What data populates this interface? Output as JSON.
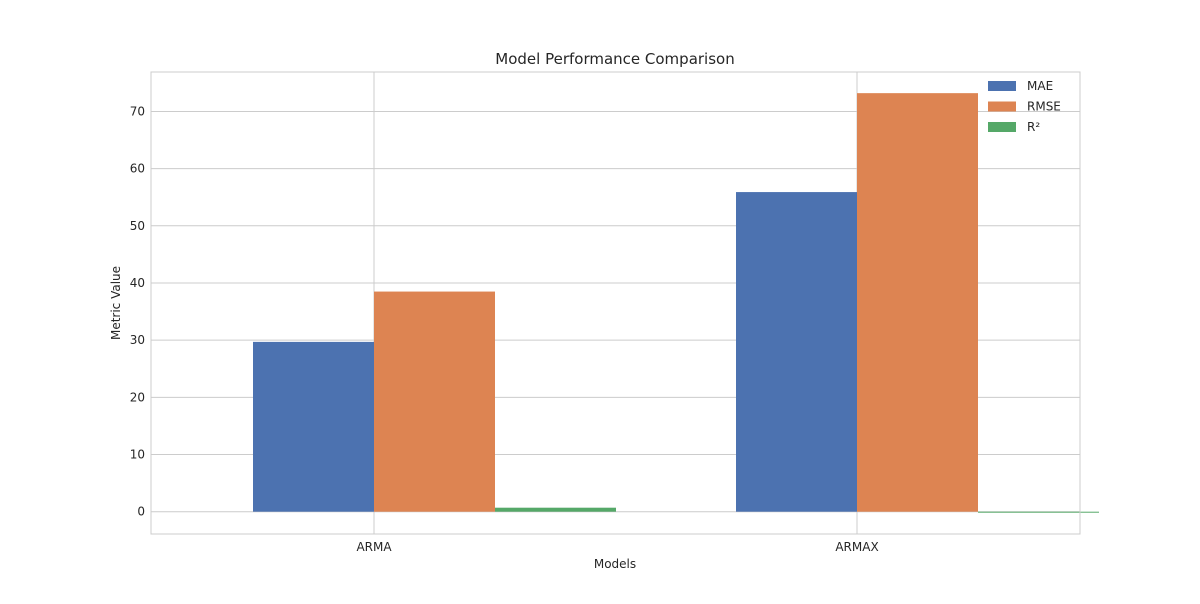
{
  "chart_data": {
    "type": "bar",
    "title": "Model Performance Comparison",
    "xlabel": "Models",
    "ylabel": "Metric Value",
    "categories": [
      "ARMA",
      "ARMAX"
    ],
    "series": [
      {
        "name": "MAE",
        "color": "#4c72b0",
        "values": [
          29.7,
          55.9
        ]
      },
      {
        "name": "RMSE",
        "color": "#dd8452",
        "values": [
          38.5,
          73.2
        ]
      },
      {
        "name": "R²",
        "color": "#55a868",
        "values": [
          0.7,
          -0.1
        ]
      }
    ],
    "ylim": [
      -3.9,
      76.9
    ],
    "yticks": [
      0,
      10,
      20,
      30,
      40,
      50,
      60,
      70
    ],
    "grid": true,
    "legend_position": "top-right"
  }
}
